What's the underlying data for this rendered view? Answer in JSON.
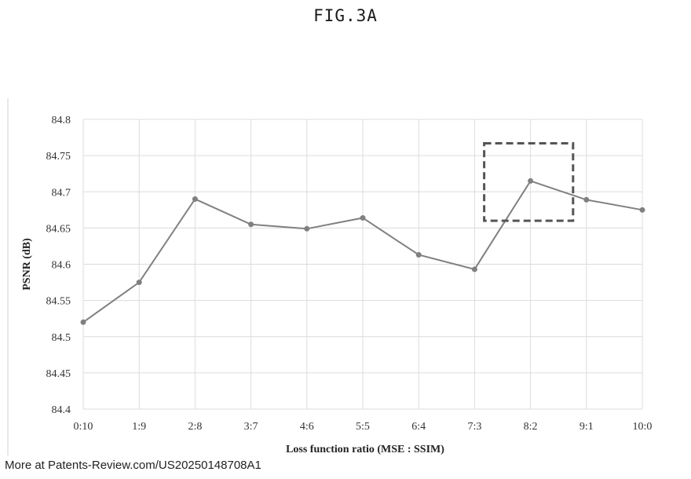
{
  "figure_label": "FIG.3A",
  "footer_text": "More at Patents-Review.com/US20250148708A1",
  "chart_data": {
    "type": "line",
    "title": "",
    "xlabel": "Loss function ratio (MSE : SSIM)",
    "ylabel": "PSNR (dB)",
    "categories": [
      "0:10",
      "1:9",
      "2:8",
      "3:7",
      "4:6",
      "5:5",
      "6:4",
      "7:3",
      "8:2",
      "9:1",
      "10:0"
    ],
    "series": [
      {
        "values": [
          84.52,
          84.575,
          84.69,
          84.655,
          84.649,
          84.664,
          84.613,
          84.593,
          84.715,
          84.689,
          84.675
        ]
      }
    ],
    "ylim": [
      84.4,
      84.8
    ],
    "yticks": [
      "84.4",
      "84.45",
      "84.5",
      "84.55",
      "84.6",
      "84.65",
      "84.7",
      "84.75",
      "84.8"
    ],
    "grid": true,
    "line_color": "#808080",
    "highlight_box": {
      "from_category": "8:2",
      "to_category": "9:1",
      "y_range": [
        84.66,
        84.767
      ],
      "style": "dashed",
      "color": "#555555"
    }
  }
}
